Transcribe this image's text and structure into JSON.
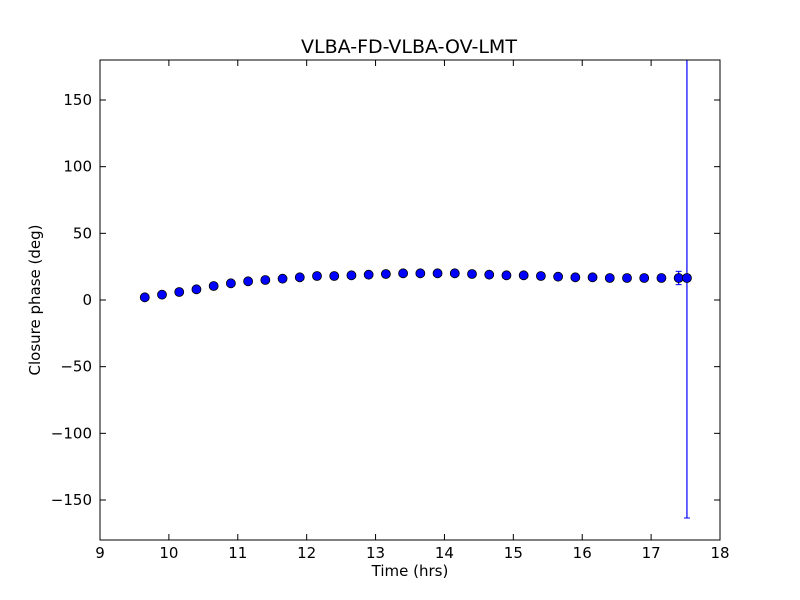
{
  "chart_data": {
    "type": "scatter",
    "title": "VLBA-FD-VLBA-OV-LMT",
    "xlabel": "Time (hrs)",
    "ylabel": "Closure phase (deg)",
    "xlim": [
      9,
      18
    ],
    "ylim": [
      -180,
      180
    ],
    "x_ticks": [
      9,
      10,
      11,
      12,
      13,
      14,
      15,
      16,
      17,
      18
    ],
    "y_ticks": [
      -150,
      -100,
      -50,
      0,
      50,
      100,
      150
    ],
    "x_tick_labels": [
      "9",
      "10",
      "11",
      "12",
      "13",
      "14",
      "15",
      "16",
      "17",
      "18"
    ],
    "y_tick_labels": [
      "−150",
      "−100",
      "−50",
      "0",
      "50",
      "100",
      "150"
    ],
    "grid": false,
    "marker_color": "#0000ff",
    "series": [
      {
        "x": [
          9.65,
          9.9,
          10.15,
          10.4,
          10.65,
          10.9,
          11.15,
          11.4,
          11.65,
          11.9,
          12.15,
          12.4,
          12.65,
          12.9,
          13.15,
          13.4,
          13.65,
          13.9,
          14.15,
          14.4,
          14.65,
          14.9,
          15.15,
          15.4,
          15.65,
          15.9,
          16.15,
          16.4,
          16.65,
          16.9,
          17.15,
          17.4,
          17.52
        ],
        "y": [
          2,
          4,
          6,
          8,
          10.5,
          12.5,
          14,
          15,
          16,
          17,
          18,
          18,
          18.5,
          19,
          19.5,
          20,
          20,
          20,
          20,
          19.5,
          19,
          18.5,
          18.5,
          18,
          17.5,
          17,
          17,
          16.5,
          16.5,
          16.5,
          16.5,
          16.5,
          16.5
        ],
        "yerr": [
          0.5,
          0.5,
          0.5,
          0.5,
          0.5,
          0.5,
          0.5,
          0.5,
          0.5,
          0.5,
          0.5,
          0.5,
          0.5,
          0.5,
          0.5,
          0.5,
          0.5,
          0.5,
          0.5,
          0.5,
          0.5,
          0.5,
          0.5,
          0.5,
          0.5,
          0.5,
          0.5,
          0.5,
          0.5,
          0.5,
          0.5,
          5,
          180
        ]
      }
    ]
  }
}
